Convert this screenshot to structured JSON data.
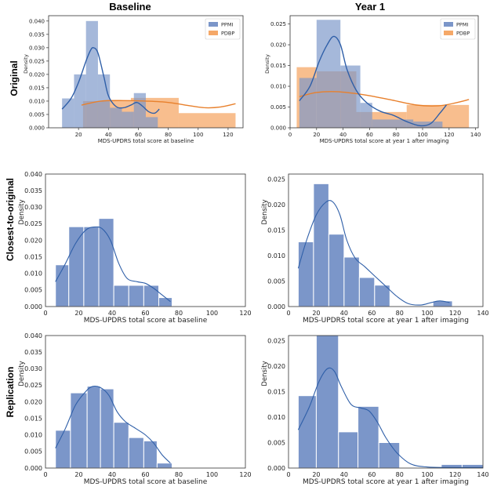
{
  "figure": {
    "column_titles": [
      "Baseline",
      "Year 1"
    ],
    "row_titles": [
      "Original",
      "Closest-to-original",
      "Replication"
    ]
  },
  "colors": {
    "ppmi_bar": "#7b96c9",
    "ppmi_line": "#2f5fa8",
    "pdbp_bar": "#f5a868",
    "pdbp_line": "#e8802c",
    "axis": "#333333"
  },
  "chart_data": [
    {
      "id": "original-baseline",
      "type": "bar",
      "style": "original",
      "xlabel": "MDS-UPDRS total score at baseline",
      "ylabel": "Density",
      "xlim": [
        0,
        130
      ],
      "ylim": [
        0,
        0.042
      ],
      "xticks": [
        20,
        40,
        60,
        80,
        100,
        120
      ],
      "yticks": [
        0.0,
        0.005,
        0.01,
        0.015,
        0.02,
        0.025,
        0.03,
        0.035,
        0.04
      ],
      "ytick_labels": [
        "0.000",
        "0.005",
        "0.010",
        "0.015",
        "0.020",
        "0.025",
        "0.030",
        "0.035",
        "0.040"
      ],
      "legend": {
        "position": "top-right",
        "entries": [
          "PPMI",
          "PDBP"
        ]
      },
      "series": [
        {
          "name": "PPMI",
          "bins": [
            [
              9,
              17,
              0.011
            ],
            [
              17,
              25,
              0.02
            ],
            [
              25,
              33,
              0.04
            ],
            [
              33,
              41,
              0.02
            ],
            [
              41,
              49,
              0.0075
            ],
            [
              49,
              57,
              0.006
            ],
            [
              57,
              65,
              0.013
            ],
            [
              65,
              73,
              0.004
            ]
          ],
          "kde": [
            [
              9,
              0.007
            ],
            [
              15,
              0.011
            ],
            [
              20,
              0.017
            ],
            [
              25,
              0.025
            ],
            [
              28,
              0.029
            ],
            [
              30,
              0.03
            ],
            [
              33,
              0.028
            ],
            [
              37,
              0.019
            ],
            [
              40,
              0.012
            ],
            [
              45,
              0.008
            ],
            [
              50,
              0.0075
            ],
            [
              55,
              0.0085
            ],
            [
              59,
              0.0095
            ],
            [
              63,
              0.008
            ],
            [
              67,
              0.006
            ],
            [
              71,
              0.0055
            ],
            [
              74,
              0.007
            ]
          ]
        },
        {
          "name": "PDBP",
          "bins": [
            [
              23,
              55,
              0.01
            ],
            [
              55,
              87,
              0.0112
            ],
            [
              87,
              125,
              0.0055
            ]
          ],
          "kde": [
            [
              22,
              0.0085
            ],
            [
              35,
              0.01
            ],
            [
              50,
              0.0102
            ],
            [
              65,
              0.01
            ],
            [
              80,
              0.0095
            ],
            [
              95,
              0.0082
            ],
            [
              105,
              0.0075
            ],
            [
              115,
              0.0078
            ],
            [
              125,
              0.009
            ]
          ]
        }
      ]
    },
    {
      "id": "original-year1",
      "type": "bar",
      "style": "original",
      "xlabel": "MDS-UPDRS total score at year 1 after imaging",
      "ylabel": "Density",
      "xlim": [
        0,
        142
      ],
      "ylim": [
        0,
        0.027
      ],
      "xticks": [
        0,
        20,
        40,
        60,
        80,
        100,
        120,
        140
      ],
      "yticks": [
        0.0,
        0.005,
        0.01,
        0.015,
        0.02,
        0.025
      ],
      "ytick_labels": [
        "0.000",
        "0.005",
        "0.010",
        "0.015",
        "0.020",
        "0.025"
      ],
      "legend": {
        "position": "top-right",
        "entries": [
          "PPMI",
          "PDBP"
        ]
      },
      "series": [
        {
          "name": "PPMI",
          "bins": [
            [
              7,
              20,
              0.012
            ],
            [
              20,
              38,
              0.026
            ],
            [
              38,
              53,
              0.015
            ],
            [
              53,
              62,
              0.006
            ],
            [
              62,
              93,
              0.002
            ],
            [
              93,
              115,
              0.0015
            ]
          ],
          "kde": [
            [
              7,
              0.0065
            ],
            [
              15,
              0.01
            ],
            [
              22,
              0.016
            ],
            [
              28,
              0.02
            ],
            [
              33,
              0.022
            ],
            [
              38,
              0.02
            ],
            [
              43,
              0.014
            ],
            [
              50,
              0.009
            ],
            [
              58,
              0.006
            ],
            [
              68,
              0.004
            ],
            [
              78,
              0.003
            ],
            [
              88,
              0.0015
            ],
            [
              98,
              0.0005
            ],
            [
              106,
              0.001
            ],
            [
              113,
              0.0035
            ],
            [
              118,
              0.0055
            ]
          ]
        },
        {
          "name": "PDBP",
          "bins": [
            [
              5,
              20,
              0.0146
            ],
            [
              20,
              50,
              0.0136
            ],
            [
              50,
              88,
              0.0038
            ],
            [
              88,
              135,
              0.0055
            ]
          ],
          "kde": [
            [
              7,
              0.0075
            ],
            [
              20,
              0.0085
            ],
            [
              35,
              0.0087
            ],
            [
              55,
              0.008
            ],
            [
              75,
              0.0068
            ],
            [
              95,
              0.0055
            ],
            [
              112,
              0.0053
            ],
            [
              125,
              0.006
            ],
            [
              135,
              0.0068
            ]
          ]
        }
      ]
    },
    {
      "id": "closest-baseline",
      "type": "bar",
      "style": "replication",
      "xlabel": "MDS-UPDRS total score at baseline",
      "ylabel": "Density",
      "xlim": [
        0,
        120
      ],
      "ylim": [
        0,
        0.04
      ],
      "xticks": [
        0,
        20,
        40,
        60,
        80,
        100,
        120
      ],
      "yticks": [
        0.0,
        0.005,
        0.01,
        0.015,
        0.02,
        0.025,
        0.03,
        0.035,
        0.04
      ],
      "ytick_labels": [
        "0.000",
        "0.005",
        "0.010",
        "0.015",
        "0.020",
        "0.025",
        "0.030",
        "0.035",
        "0.040"
      ],
      "series": [
        {
          "name": "PPMI",
          "bins": [
            [
              6,
              14,
              0.0126
            ],
            [
              14,
              23,
              0.0241
            ],
            [
              23,
              32,
              0.0241
            ],
            [
              32,
              41,
              0.0266
            ],
            [
              41,
              50,
              0.0064
            ],
            [
              50,
              59,
              0.0064
            ],
            [
              59,
              68,
              0.0064
            ],
            [
              68,
              76,
              0.0027
            ]
          ],
          "kde": [
            [
              6,
              0.0075
            ],
            [
              12,
              0.013
            ],
            [
              18,
              0.019
            ],
            [
              24,
              0.023
            ],
            [
              29,
              0.024
            ],
            [
              34,
              0.0235
            ],
            [
              39,
              0.02
            ],
            [
              44,
              0.013
            ],
            [
              49,
              0.0085
            ],
            [
              55,
              0.0075
            ],
            [
              60,
              0.007
            ],
            [
              65,
              0.0055
            ],
            [
              70,
              0.0035
            ],
            [
              75,
              0.0015
            ]
          ]
        }
      ]
    },
    {
      "id": "closest-year1",
      "type": "bar",
      "style": "replication",
      "xlabel": "MDS-UPDRS total score at year 1 after imaging",
      "ylabel": "Density",
      "xlim": [
        0,
        140
      ],
      "ylim": [
        0,
        0.026
      ],
      "xticks": [
        0,
        20,
        40,
        60,
        80,
        100,
        120,
        140
      ],
      "yticks": [
        0.0,
        0.005,
        0.01,
        0.015,
        0.02,
        0.025
      ],
      "ytick_labels": [
        "0.000",
        "0.005",
        "0.010",
        "0.015",
        "0.020",
        "0.025"
      ],
      "series": [
        {
          "name": "PPMI",
          "bins": [
            [
              7,
              18,
              0.0127
            ],
            [
              18,
              29,
              0.0241
            ],
            [
              29,
              40,
              0.0142
            ],
            [
              40,
              51,
              0.0097
            ],
            [
              51,
              62,
              0.0057
            ],
            [
              62,
              73,
              0.0042
            ],
            [
              73,
              90,
              0.0001
            ],
            [
              104,
              118,
              0.0011
            ]
          ],
          "kde": [
            [
              7,
              0.0075
            ],
            [
              13,
              0.013
            ],
            [
              20,
              0.018
            ],
            [
              27,
              0.0205
            ],
            [
              32,
              0.0205
            ],
            [
              37,
              0.018
            ],
            [
              42,
              0.013
            ],
            [
              48,
              0.0095
            ],
            [
              55,
              0.0078
            ],
            [
              62,
              0.006
            ],
            [
              70,
              0.004
            ],
            [
              78,
              0.002
            ],
            [
              86,
              0.0006
            ],
            [
              95,
              0.0003
            ],
            [
              103,
              0.0008
            ],
            [
              109,
              0.0011
            ],
            [
              116,
              0.0008
            ]
          ]
        }
      ]
    },
    {
      "id": "replication-baseline",
      "type": "bar",
      "style": "replication",
      "xlabel": "MDS-UPDRS total score at baseline",
      "ylabel": "Density",
      "xlim": [
        0,
        120
      ],
      "ylim": [
        0,
        0.04
      ],
      "xticks": [
        0,
        20,
        40,
        60,
        80,
        100,
        120
      ],
      "yticks": [
        0.0,
        0.005,
        0.01,
        0.015,
        0.02,
        0.025,
        0.03,
        0.035,
        0.04
      ],
      "ytick_labels": [
        "0.000",
        "0.005",
        "0.010",
        "0.015",
        "0.020",
        "0.025",
        "0.030",
        "0.035",
        "0.040"
      ],
      "series": [
        {
          "name": "PPMI",
          "bins": [
            [
              6,
              15,
              0.0114
            ],
            [
              15,
              25,
              0.0227
            ],
            [
              25,
              33,
              0.0247
            ],
            [
              33,
              41,
              0.0239
            ],
            [
              41,
              50,
              0.0138
            ],
            [
              50,
              59,
              0.0092
            ],
            [
              59,
              67,
              0.0082
            ],
            [
              67,
              76,
              0.0015
            ]
          ],
          "kde": [
            [
              6,
              0.006
            ],
            [
              12,
              0.012
            ],
            [
              18,
              0.019
            ],
            [
              24,
              0.023
            ],
            [
              28,
              0.0246
            ],
            [
              33,
              0.0243
            ],
            [
              38,
              0.022
            ],
            [
              43,
              0.017
            ],
            [
              48,
              0.014
            ],
            [
              54,
              0.012
            ],
            [
              60,
              0.01
            ],
            [
              65,
              0.0075
            ],
            [
              70,
              0.004
            ],
            [
              75,
              0.0015
            ]
          ]
        }
      ]
    },
    {
      "id": "replication-year1",
      "type": "bar",
      "style": "replication",
      "xlabel": "MDS-UPDRS total score at year 1 after imaging",
      "ylabel": "Density",
      "xlim": [
        0,
        140
      ],
      "ylim": [
        0,
        0.026
      ],
      "xticks": [
        0,
        20,
        40,
        60,
        80,
        100,
        120,
        140
      ],
      "yticks": [
        0.0,
        0.005,
        0.01,
        0.015,
        0.02,
        0.025
      ],
      "ytick_labels": [
        "0.000",
        "0.005",
        "0.010",
        "0.015",
        "0.020",
        "0.025"
      ],
      "series": [
        {
          "name": "PPMI",
          "bins": [
            [
              7,
              20,
              0.0142
            ],
            [
              20,
              36,
              0.0272
            ],
            [
              36,
              50,
              0.0071
            ],
            [
              50,
              65,
              0.0121
            ],
            [
              65,
              80,
              0.005
            ],
            [
              110,
              125,
              0.0007
            ],
            [
              125,
              140,
              0.0007
            ]
          ],
          "kde": [
            [
              7,
              0.0075
            ],
            [
              15,
              0.012
            ],
            [
              22,
              0.017
            ],
            [
              28,
              0.0195
            ],
            [
              33,
              0.019
            ],
            [
              38,
              0.016
            ],
            [
              45,
              0.0125
            ],
            [
              52,
              0.0118
            ],
            [
              58,
              0.0112
            ],
            [
              64,
              0.009
            ],
            [
              70,
              0.006
            ],
            [
              78,
              0.003
            ],
            [
              88,
              0.0008
            ],
            [
              100,
              0.0002
            ],
            [
              115,
              0.0001
            ],
            [
              140,
              0.0001
            ]
          ]
        }
      ]
    }
  ]
}
